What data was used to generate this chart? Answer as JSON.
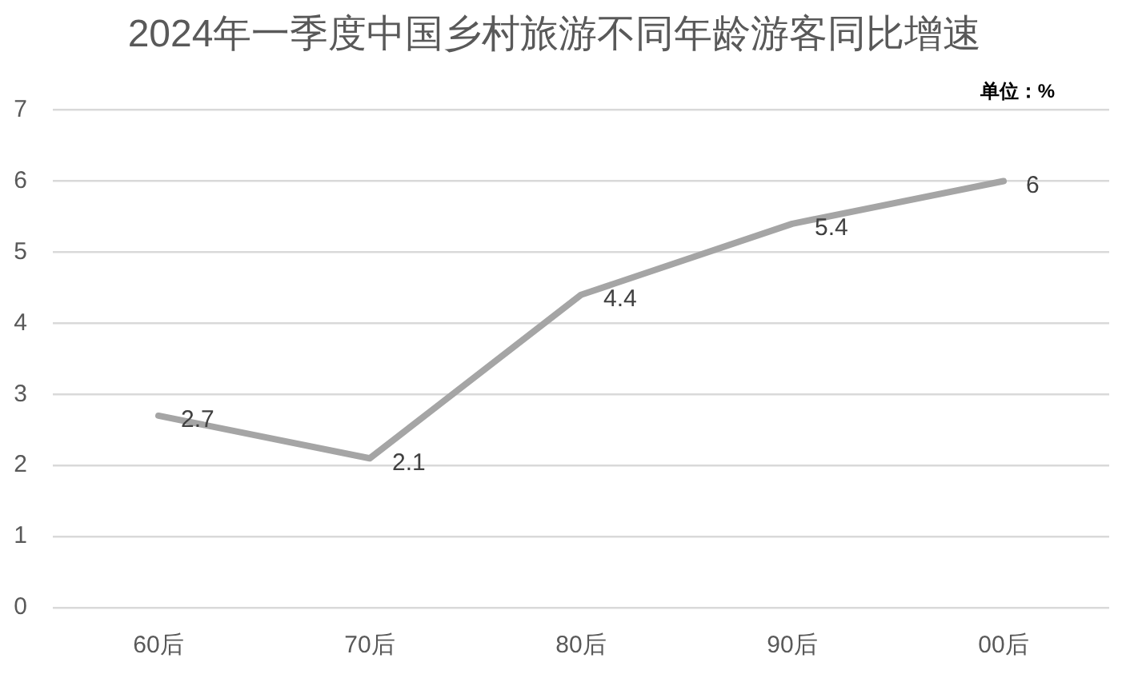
{
  "chart_data": {
    "type": "line",
    "title": "2024年一季度中国乡村旅游不同年龄游客同比增速",
    "annotations": [
      "单位：%"
    ],
    "categories": [
      "60后",
      "70后",
      "80后",
      "90后",
      "00后"
    ],
    "series": [
      {
        "color": "#a5a5a5",
        "values": [
          2.7,
          2.1,
          4.4,
          5.4,
          6
        ]
      }
    ],
    "ylim": [
      0,
      7
    ],
    "yticks": [
      0,
      1,
      2,
      3,
      4,
      5,
      6,
      7
    ],
    "grid": "y",
    "legend": false,
    "marker": "none",
    "line_style": "solid",
    "data_labels": true
  }
}
